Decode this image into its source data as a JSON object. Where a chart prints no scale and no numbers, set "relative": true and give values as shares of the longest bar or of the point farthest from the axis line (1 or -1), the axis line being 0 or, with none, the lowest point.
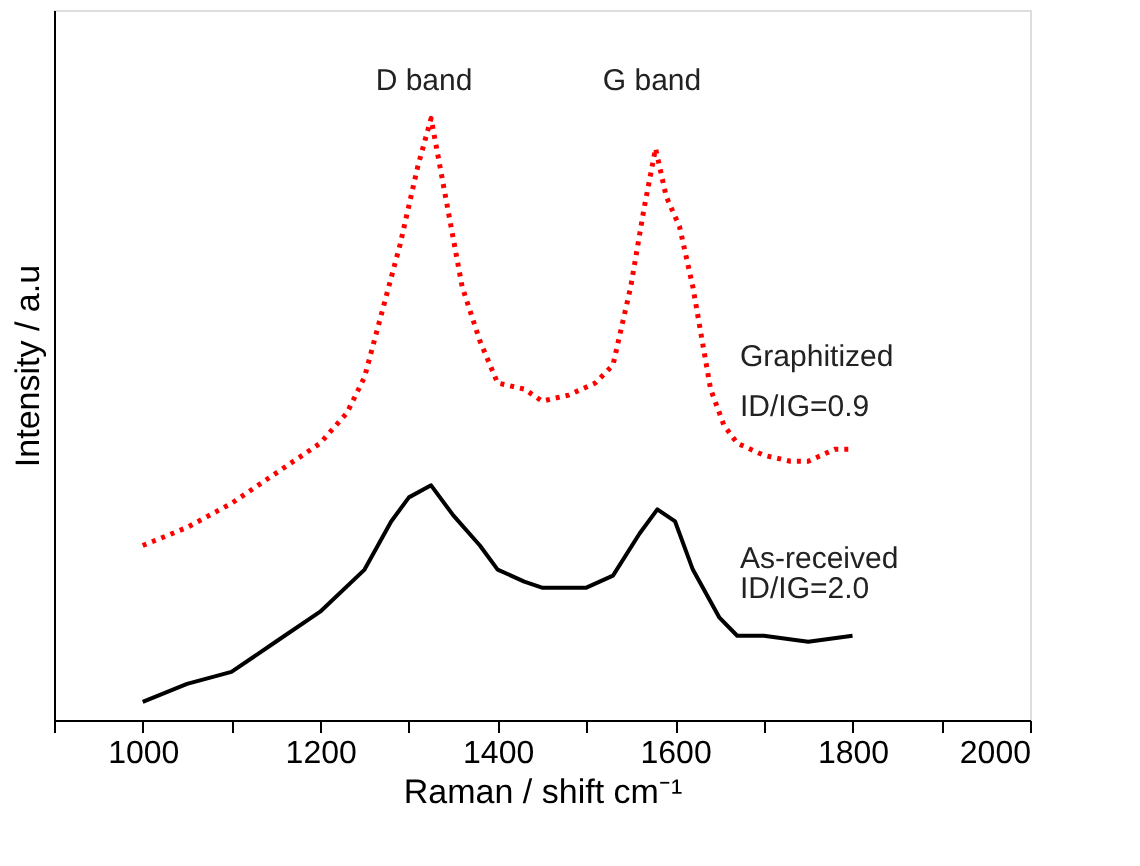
{
  "chart_data": {
    "type": "line",
    "relative": true,
    "xlabel": "Raman / shift cm⁻¹",
    "ylabel": "Intensity / a.u",
    "xlim": [
      900,
      2000
    ],
    "xticks": [
      {
        "value": 900,
        "label": null
      },
      1000,
      {
        "value": 1100,
        "label": null
      },
      1200,
      {
        "value": 1300,
        "label": null
      },
      1400,
      {
        "value": 1500,
        "label": null
      },
      1600,
      {
        "value": 1700,
        "label": null
      },
      1800,
      {
        "value": 1900,
        "label": null
      },
      2000
    ],
    "grid": false,
    "line_style": "solid",
    "series": [
      {
        "name": "Graphitized",
        "color": "#ff0000",
        "line_style": "dotted",
        "x": [
          1000,
          1050,
          1100,
          1150,
          1200,
          1230,
          1250,
          1270,
          1290,
          1310,
          1325,
          1340,
          1360,
          1380,
          1400,
          1430,
          1450,
          1480,
          1510,
          1530,
          1550,
          1565,
          1578,
          1590,
          1605,
          1620,
          1640,
          1655,
          1670,
          1700,
          1730,
          1750,
          1780,
          1800
        ],
        "values": [
          0.29,
          0.32,
          0.36,
          0.41,
          0.46,
          0.51,
          0.57,
          0.68,
          0.79,
          0.92,
          1.0,
          0.88,
          0.72,
          0.63,
          0.56,
          0.55,
          0.53,
          0.54,
          0.56,
          0.59,
          0.72,
          0.85,
          0.95,
          0.87,
          0.82,
          0.72,
          0.55,
          0.49,
          0.46,
          0.44,
          0.43,
          0.43,
          0.45,
          0.45
        ]
      },
      {
        "name": "As-received",
        "color": "#000000",
        "x": [
          1000,
          1050,
          1100,
          1150,
          1200,
          1250,
          1280,
          1300,
          1325,
          1350,
          1380,
          1400,
          1430,
          1450,
          1500,
          1530,
          1560,
          1580,
          1600,
          1620,
          1650,
          1670,
          1700,
          1750,
          1800
        ],
        "values": [
          0.03,
          0.06,
          0.08,
          0.13,
          0.18,
          0.25,
          0.33,
          0.37,
          0.39,
          0.34,
          0.29,
          0.25,
          0.23,
          0.22,
          0.22,
          0.24,
          0.31,
          0.35,
          0.33,
          0.25,
          0.17,
          0.14,
          0.14,
          0.13,
          0.14
        ]
      }
    ],
    "annotations": [
      "D band",
      "G band",
      "ID/IG=0.9",
      "ID/IG=2.0"
    ]
  }
}
